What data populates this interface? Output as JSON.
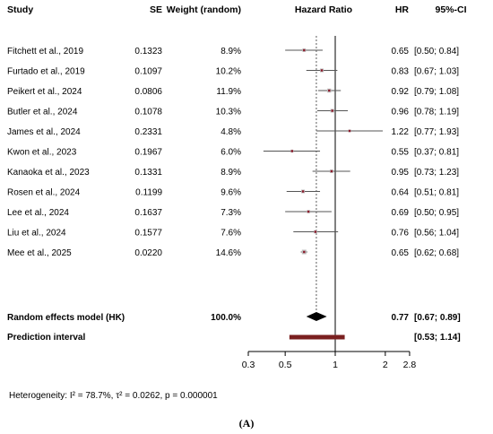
{
  "chart_data": {
    "type": "forest",
    "headers": {
      "study": "Study",
      "se": "SE",
      "weight": "Weight (random)",
      "effect": "Hazard Ratio",
      "hr": "HR",
      "ci": "95%-CI"
    },
    "studies": [
      {
        "label": "Fitchett et al., 2019",
        "se": "0.1323",
        "weight": "8.9%",
        "hr": 0.65,
        "lower": 0.5,
        "upper": 0.84,
        "hr_text": "0.65",
        "ci_text": "[0.50; 0.84]"
      },
      {
        "label": "Furtado et al., 2019",
        "se": "0.1097",
        "weight": "10.2%",
        "hr": 0.83,
        "lower": 0.67,
        "upper": 1.03,
        "hr_text": "0.83",
        "ci_text": "[0.67; 1.03]"
      },
      {
        "label": "Peikert et al., 2024",
        "se": "0.0806",
        "weight": "11.9%",
        "hr": 0.92,
        "lower": 0.79,
        "upper": 1.08,
        "hr_text": "0.92",
        "ci_text": "[0.79; 1.08]"
      },
      {
        "label": "Butler et al., 2024",
        "se": "0.1078",
        "weight": "10.3%",
        "hr": 0.96,
        "lower": 0.78,
        "upper": 1.19,
        "hr_text": "0.96",
        "ci_text": "[0.78; 1.19]"
      },
      {
        "label": "James et al., 2024",
        "se": "0.2331",
        "weight": "4.8%",
        "hr": 1.22,
        "lower": 0.77,
        "upper": 1.93,
        "hr_text": "1.22",
        "ci_text": "[0.77; 1.93]"
      },
      {
        "label": "Kwon et al., 2023",
        "se": "0.1967",
        "weight": "6.0%",
        "hr": 0.55,
        "lower": 0.37,
        "upper": 0.81,
        "hr_text": "0.55",
        "ci_text": "[0.37; 0.81]"
      },
      {
        "label": "Kanaoka et al., 2023",
        "se": "0.1331",
        "weight": "8.9%",
        "hr": 0.95,
        "lower": 0.73,
        "upper": 1.23,
        "hr_text": "0.95",
        "ci_text": "[0.73; 1.23]"
      },
      {
        "label": "Rosen et al., 2024",
        "se": "0.1199",
        "weight": "9.6%",
        "hr": 0.64,
        "lower": 0.51,
        "upper": 0.81,
        "hr_text": "0.64",
        "ci_text": "[0.51; 0.81]"
      },
      {
        "label": "Lee et al., 2024",
        "se": "0.1637",
        "weight": "7.3%",
        "hr": 0.69,
        "lower": 0.5,
        "upper": 0.95,
        "hr_text": "0.69",
        "ci_text": "[0.50; 0.95]"
      },
      {
        "label": "Liu et al., 2024",
        "se": "0.1577",
        "weight": "7.6%",
        "hr": 0.76,
        "lower": 0.56,
        "upper": 1.04,
        "hr_text": "0.76",
        "ci_text": "[0.56; 1.04]"
      },
      {
        "label": "Mee et al., 2025",
        "se": "0.0220",
        "weight": "14.6%",
        "hr": 0.65,
        "lower": 0.62,
        "upper": 0.68,
        "hr_text": "0.65",
        "ci_text": "[0.62; 0.68]"
      }
    ],
    "pooled": {
      "label": "Random effects model (HK)",
      "weight": "100.0%",
      "hr": 0.77,
      "lower": 0.67,
      "upper": 0.89,
      "hr_text": "0.77",
      "ci_text": "[0.67; 0.89]"
    },
    "prediction": {
      "label": "Prediction interval",
      "lower": 0.53,
      "upper": 1.14,
      "ci_text": "[0.53; 1.14]"
    },
    "x_axis": {
      "scale": "log",
      "ticks": [
        0.3,
        0.5,
        1,
        2,
        2.8
      ],
      "tick_labels": [
        "0.3",
        "0.5",
        "1",
        "2",
        "2.8"
      ],
      "reference": 1,
      "xlim": [
        0.3,
        2.8
      ]
    },
    "heterogeneity": "Heterogeneity: I² = 78.7%, τ² = 0.0262, p = 0.000001",
    "panel_label": "(A)",
    "colors": {
      "study_marker": "#8b1a2b",
      "diamond": "#000000",
      "prediction_bar": "#7a1f1f",
      "ci_line": "#555555"
    }
  }
}
